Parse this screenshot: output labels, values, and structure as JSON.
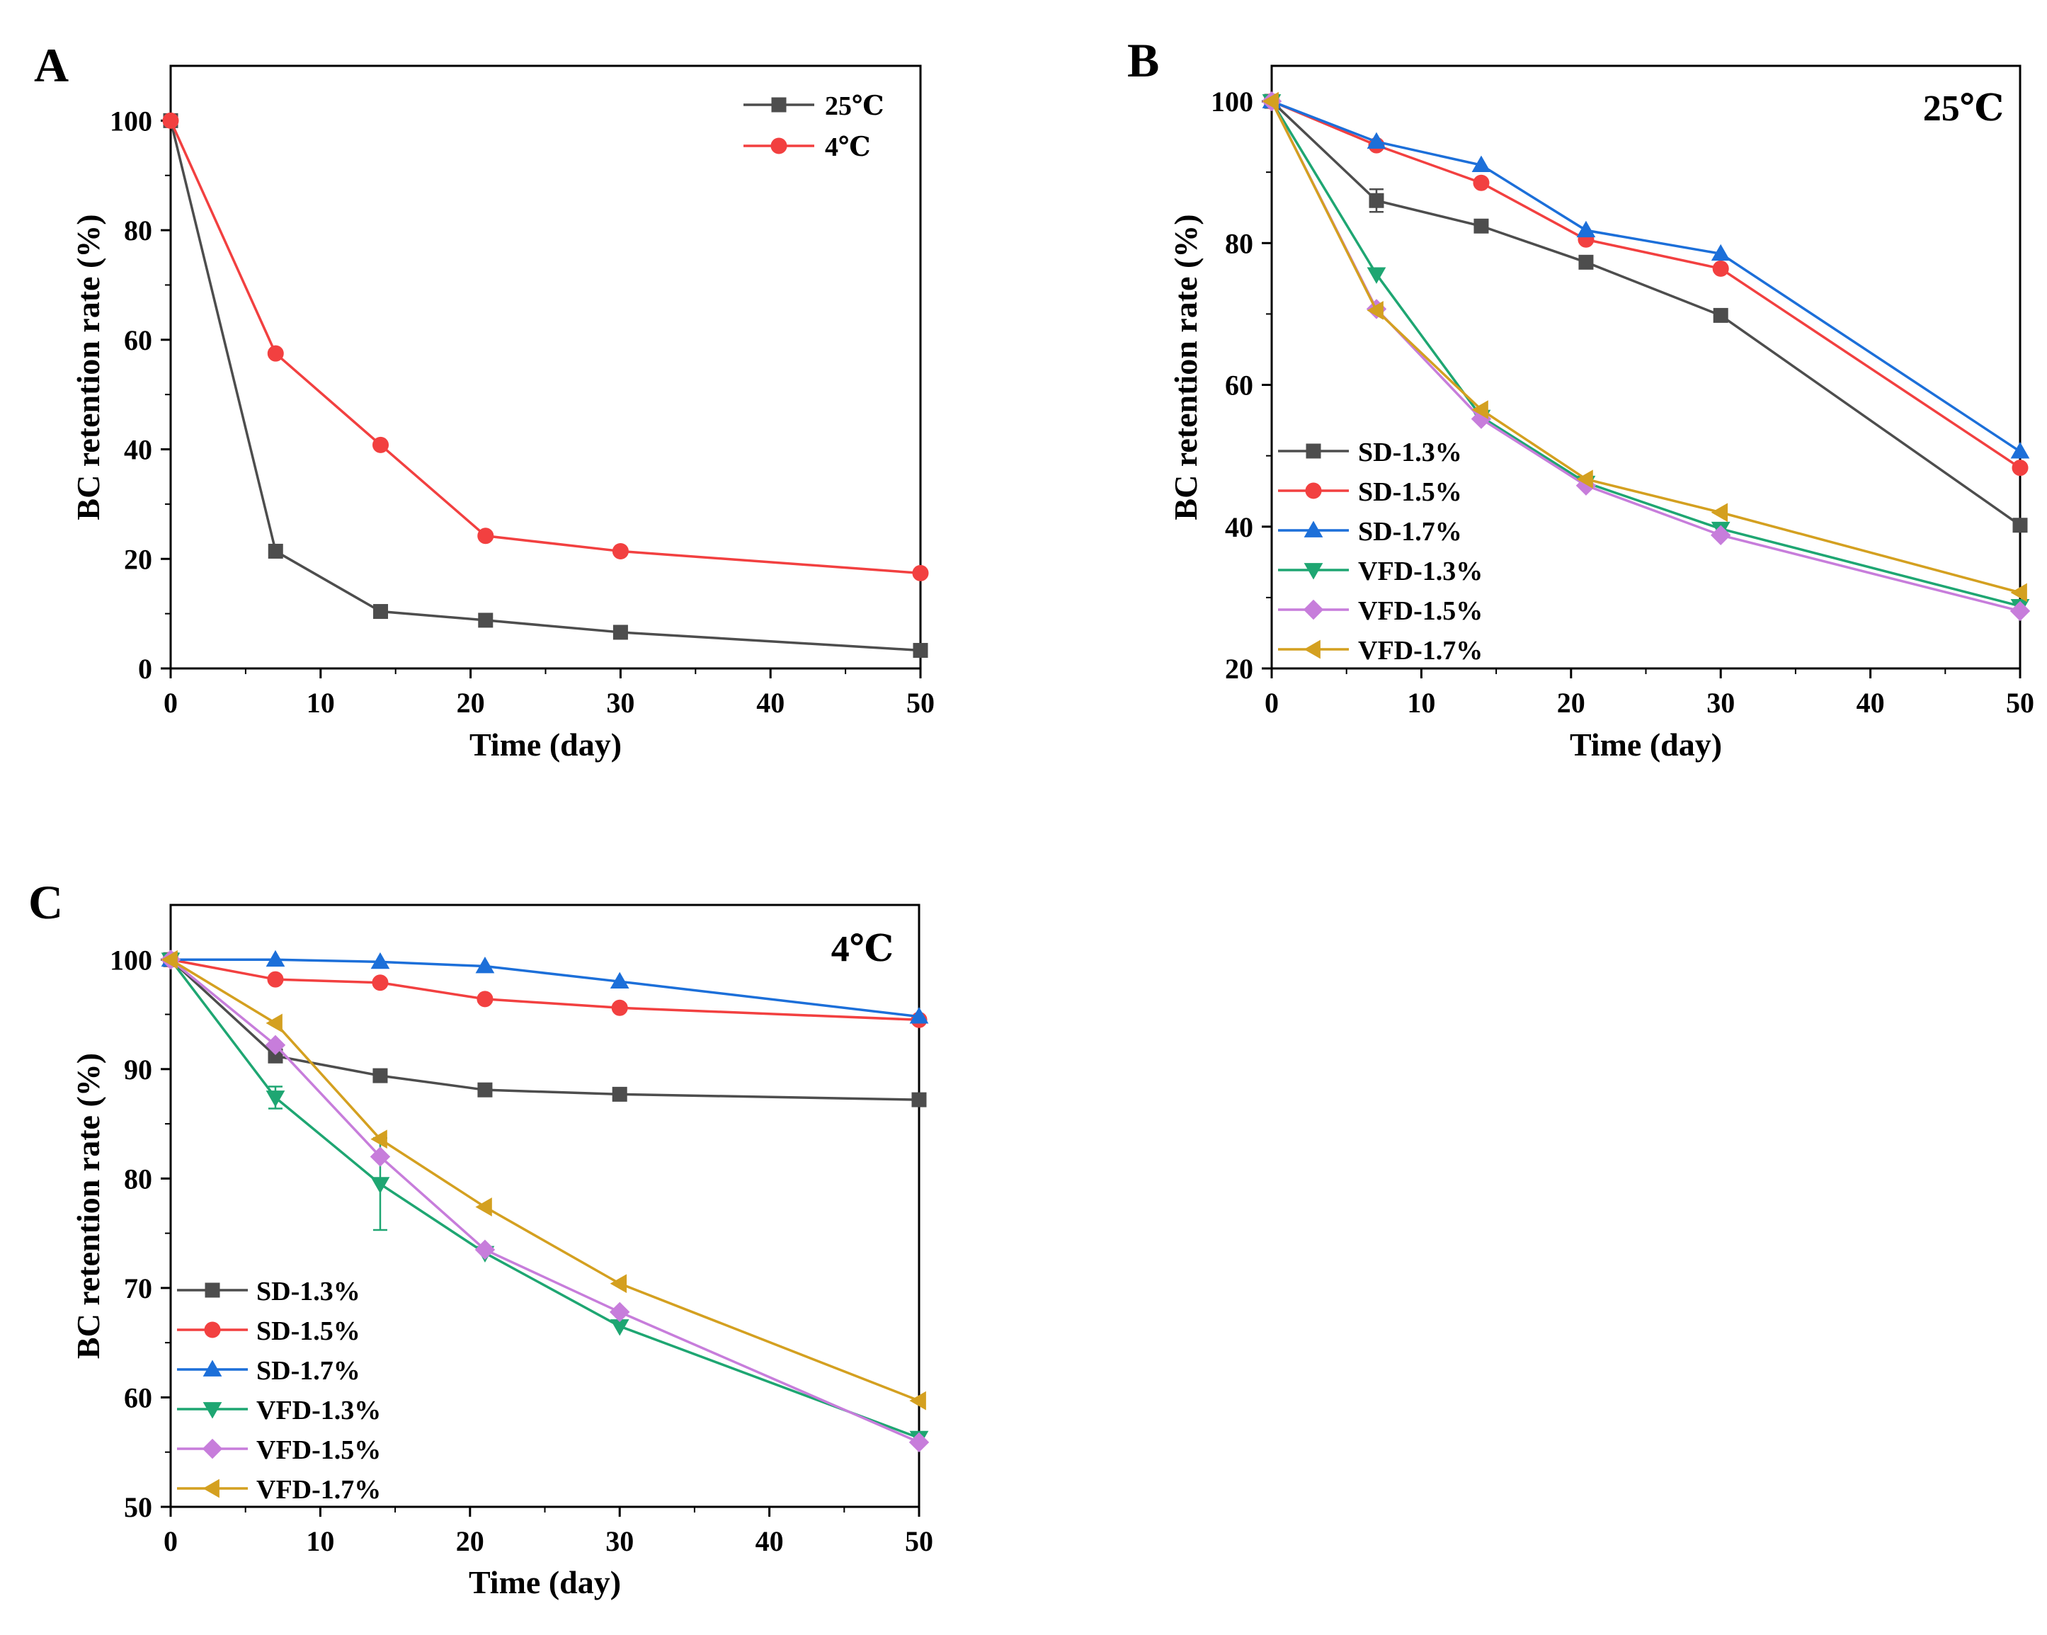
{
  "chart_data": [
    {
      "panel": "A",
      "type": "line",
      "title": "",
      "xlabel": "Time (day)",
      "ylabel": "BC retention rate (%)",
      "xlim": [
        0,
        50
      ],
      "ylim": [
        0,
        110
      ],
      "xticks": [
        0,
        10,
        20,
        30,
        40,
        50
      ],
      "yticks": [
        0,
        20,
        40,
        60,
        80,
        100
      ],
      "grid": false,
      "legend_position": "top-right",
      "condition_label": "",
      "x": [
        0,
        7,
        14,
        21,
        30,
        50
      ],
      "series": [
        {
          "name": "25℃",
          "color": "#4d4d4d",
          "marker": "square",
          "values": [
            100,
            21.4,
            10.4,
            8.8,
            6.6,
            3.3
          ]
        },
        {
          "name": "4℃",
          "color": "#f24040",
          "marker": "circle",
          "values": [
            100,
            57.5,
            40.8,
            24.2,
            21.4,
            17.4
          ]
        }
      ]
    },
    {
      "panel": "B",
      "type": "line",
      "title": "",
      "xlabel": "Time (day)",
      "ylabel": "BC retention rate (%)",
      "xlim": [
        0,
        50
      ],
      "ylim": [
        20,
        105
      ],
      "xticks": [
        0,
        10,
        20,
        30,
        40,
        50
      ],
      "yticks": [
        20,
        40,
        60,
        80,
        100
      ],
      "grid": false,
      "legend_position": "bottom-left",
      "condition_label": "25℃",
      "x": [
        0,
        7,
        14,
        21,
        30,
        50
      ],
      "series": [
        {
          "name": "SD-1.3%",
          "color": "#4d4d4d",
          "marker": "square",
          "values": [
            100,
            86,
            82.4,
            77.3,
            69.8,
            40.2
          ],
          "errors": [
            0,
            1.6,
            0.4,
            0.4,
            0.4,
            0.4
          ]
        },
        {
          "name": "SD-1.5%",
          "color": "#f24040",
          "marker": "circle",
          "values": [
            100,
            93.8,
            88.5,
            80.5,
            76.4,
            48.3
          ]
        },
        {
          "name": "SD-1.7%",
          "color": "#1c6fd9",
          "marker": "triangle-up",
          "values": [
            100,
            94.3,
            91,
            81.8,
            78.5,
            50.6
          ]
        },
        {
          "name": "VFD-1.3%",
          "color": "#1ea672",
          "marker": "triangle-down",
          "values": [
            100,
            75.6,
            55.5,
            46.2,
            39.7,
            28.8
          ]
        },
        {
          "name": "VFD-1.5%",
          "color": "#c77ddb",
          "marker": "diamond",
          "values": [
            100,
            70.7,
            55.2,
            45.8,
            38.8,
            28.1
          ]
        },
        {
          "name": "VFD-1.7%",
          "color": "#d4a020",
          "marker": "triangle-left",
          "values": [
            100,
            70.5,
            56.5,
            46.7,
            42,
            30.7
          ]
        }
      ]
    },
    {
      "panel": "C",
      "type": "line",
      "title": "",
      "xlabel": "Time (day)",
      "ylabel": "BC retention rate (%)",
      "xlim": [
        0,
        50
      ],
      "ylim": [
        50,
        105
      ],
      "xticks": [
        0,
        10,
        20,
        30,
        40,
        50
      ],
      "yticks": [
        50,
        60,
        70,
        80,
        90,
        100
      ],
      "grid": false,
      "legend_position": "bottom-left",
      "condition_label": "4℃",
      "x": [
        0,
        7,
        14,
        21,
        30,
        50
      ],
      "series": [
        {
          "name": "SD-1.3%",
          "color": "#4d4d4d",
          "marker": "square",
          "values": [
            100,
            91.2,
            89.4,
            88.1,
            87.7,
            87.2
          ]
        },
        {
          "name": "SD-1.5%",
          "color": "#f24040",
          "marker": "circle",
          "values": [
            100,
            98.2,
            97.9,
            96.4,
            95.6,
            94.5
          ]
        },
        {
          "name": "SD-1.7%",
          "color": "#1c6fd9",
          "marker": "triangle-up",
          "values": [
            100,
            100,
            99.8,
            99.4,
            98,
            94.8
          ]
        },
        {
          "name": "VFD-1.3%",
          "color": "#1ea672",
          "marker": "triangle-down",
          "values": [
            100,
            87.4,
            79.5,
            73.2,
            66.5,
            56.3
          ],
          "errors": [
            0,
            1,
            4.2,
            0,
            0,
            0
          ]
        },
        {
          "name": "VFD-1.5%",
          "color": "#c77ddb",
          "marker": "diamond",
          "values": [
            100,
            92.2,
            82,
            73.5,
            67.8,
            55.9
          ]
        },
        {
          "name": "VFD-1.7%",
          "color": "#d4a020",
          "marker": "triangle-left",
          "values": [
            100,
            94.2,
            83.6,
            77.4,
            70.4,
            59.7
          ]
        }
      ]
    }
  ]
}
